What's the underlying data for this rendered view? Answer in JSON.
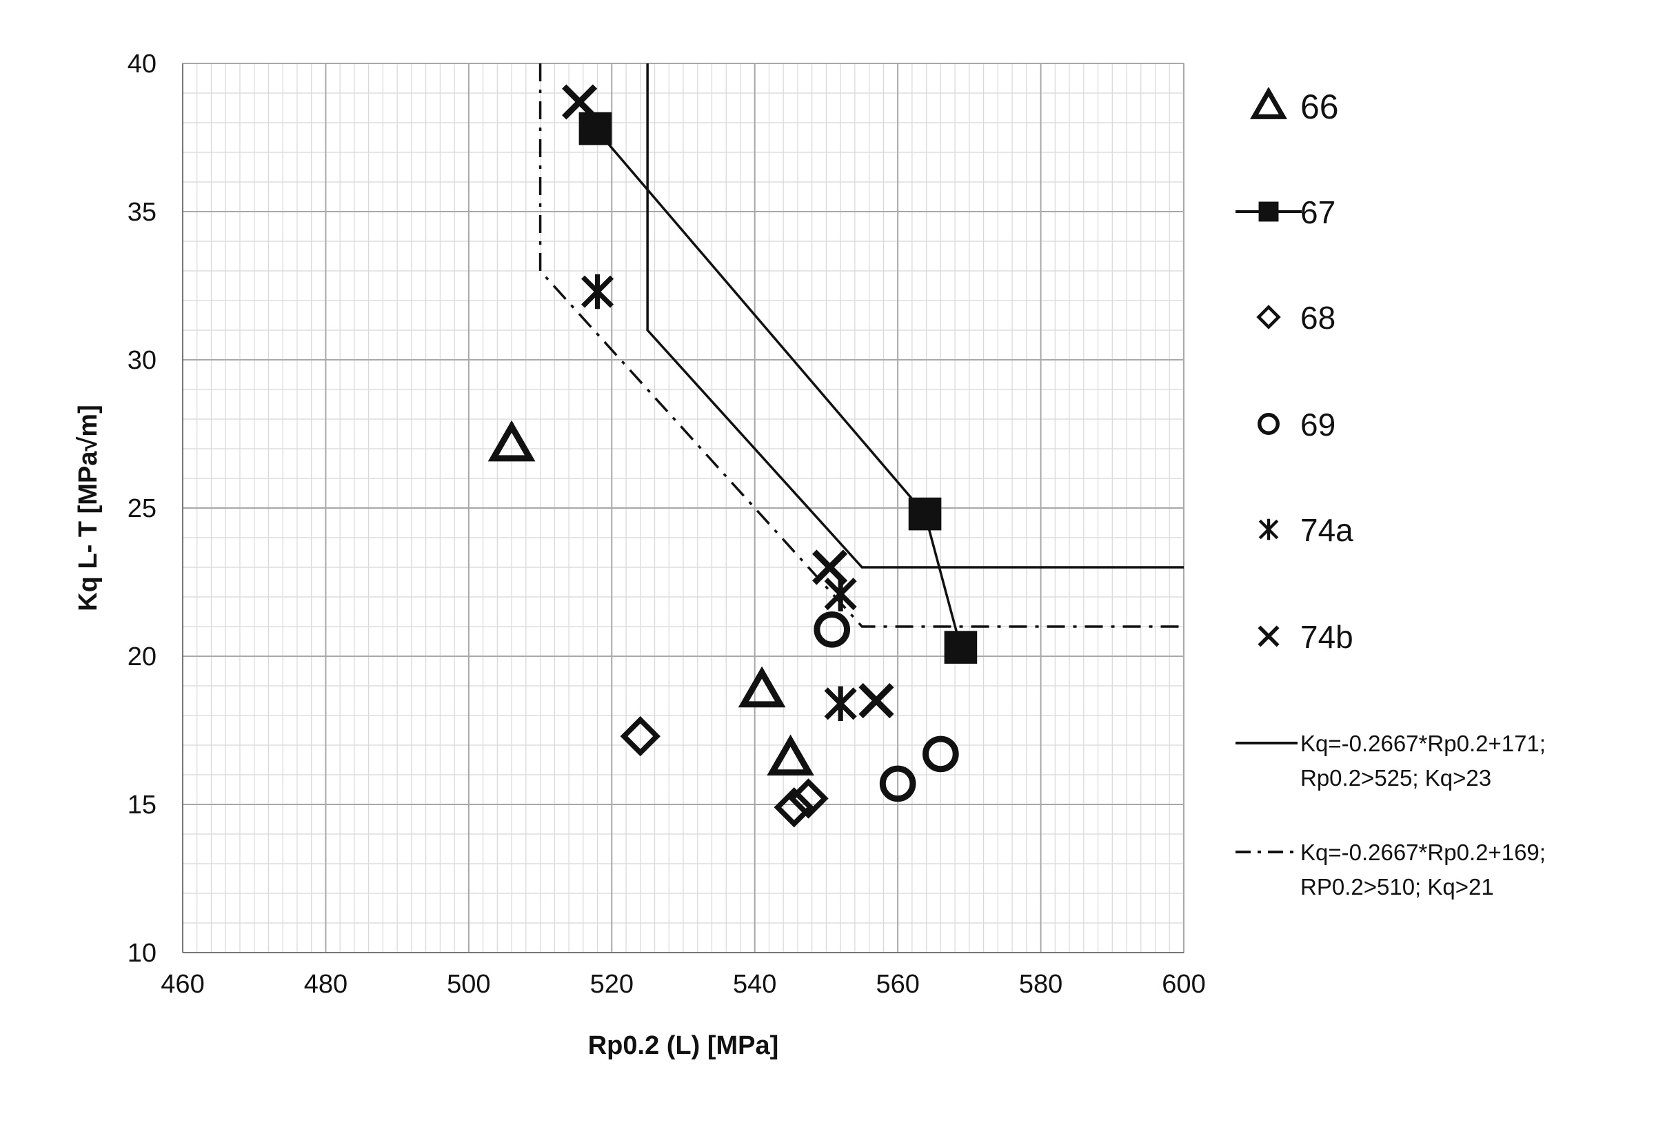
{
  "chart_data": {
    "type": "scatter",
    "title": "",
    "xlabel": "Rp0.2 (L) [MPa]",
    "ylabel": "Kq L- T [MPa√m]",
    "xlim": [
      460,
      600
    ],
    "ylim": [
      10,
      40
    ],
    "x_ticks": [
      460,
      480,
      500,
      520,
      540,
      560,
      580,
      600
    ],
    "y_ticks": [
      10,
      15,
      20,
      25,
      30,
      35,
      40
    ],
    "grid": true,
    "legend_position": "right",
    "series": [
      {
        "name": "66",
        "marker": "triangle",
        "connected": false,
        "points": [
          [
            506,
            27.1
          ],
          [
            541,
            18.8
          ],
          [
            545,
            16.5
          ]
        ]
      },
      {
        "name": "67",
        "marker": "square",
        "connected": true,
        "points": [
          [
            517.7,
            37.8
          ],
          [
            563.8,
            24.8
          ],
          [
            568.8,
            20.3
          ]
        ]
      },
      {
        "name": "68",
        "marker": "diamond",
        "connected": false,
        "points": [
          [
            524,
            17.3
          ],
          [
            545.5,
            14.9
          ],
          [
            547.5,
            15.2
          ]
        ]
      },
      {
        "name": "69",
        "marker": "circle",
        "connected": false,
        "points": [
          [
            550.8,
            20.9
          ],
          [
            560,
            15.7
          ],
          [
            566,
            16.7
          ]
        ]
      },
      {
        "name": "74a",
        "marker": "asterisk",
        "connected": false,
        "points": [
          [
            518,
            32.3
          ],
          [
            552,
            22.1
          ],
          [
            552,
            18.4
          ]
        ]
      },
      {
        "name": "74b",
        "marker": "cross",
        "connected": false,
        "points": [
          [
            515.5,
            38.7
          ],
          [
            550.5,
            23.0
          ],
          [
            557,
            18.5
          ]
        ]
      }
    ],
    "lines": [
      {
        "name": "Kq=-0.2667*Rp0.2+171;",
        "name_line2": "Rp0.2>525; Kq>23",
        "style": "solid",
        "points": [
          [
            525,
            40
          ],
          [
            525,
            31.0
          ],
          [
            555,
            23.0
          ],
          [
            600,
            23.0
          ]
        ]
      },
      {
        "name": "Kq=-0.2667*Rp0.2+169;",
        "name_line2": "RP0.2>510; Kq>21",
        "style": "dashdot",
        "points": [
          [
            510,
            40
          ],
          [
            510,
            33.0
          ],
          [
            555,
            21.0
          ],
          [
            600,
            21.0
          ]
        ]
      }
    ],
    "colors": {
      "ink": "#111111",
      "grid": "#a8a8a8",
      "minor_grid": "#d8d8d8",
      "background": "#ffffff"
    }
  }
}
